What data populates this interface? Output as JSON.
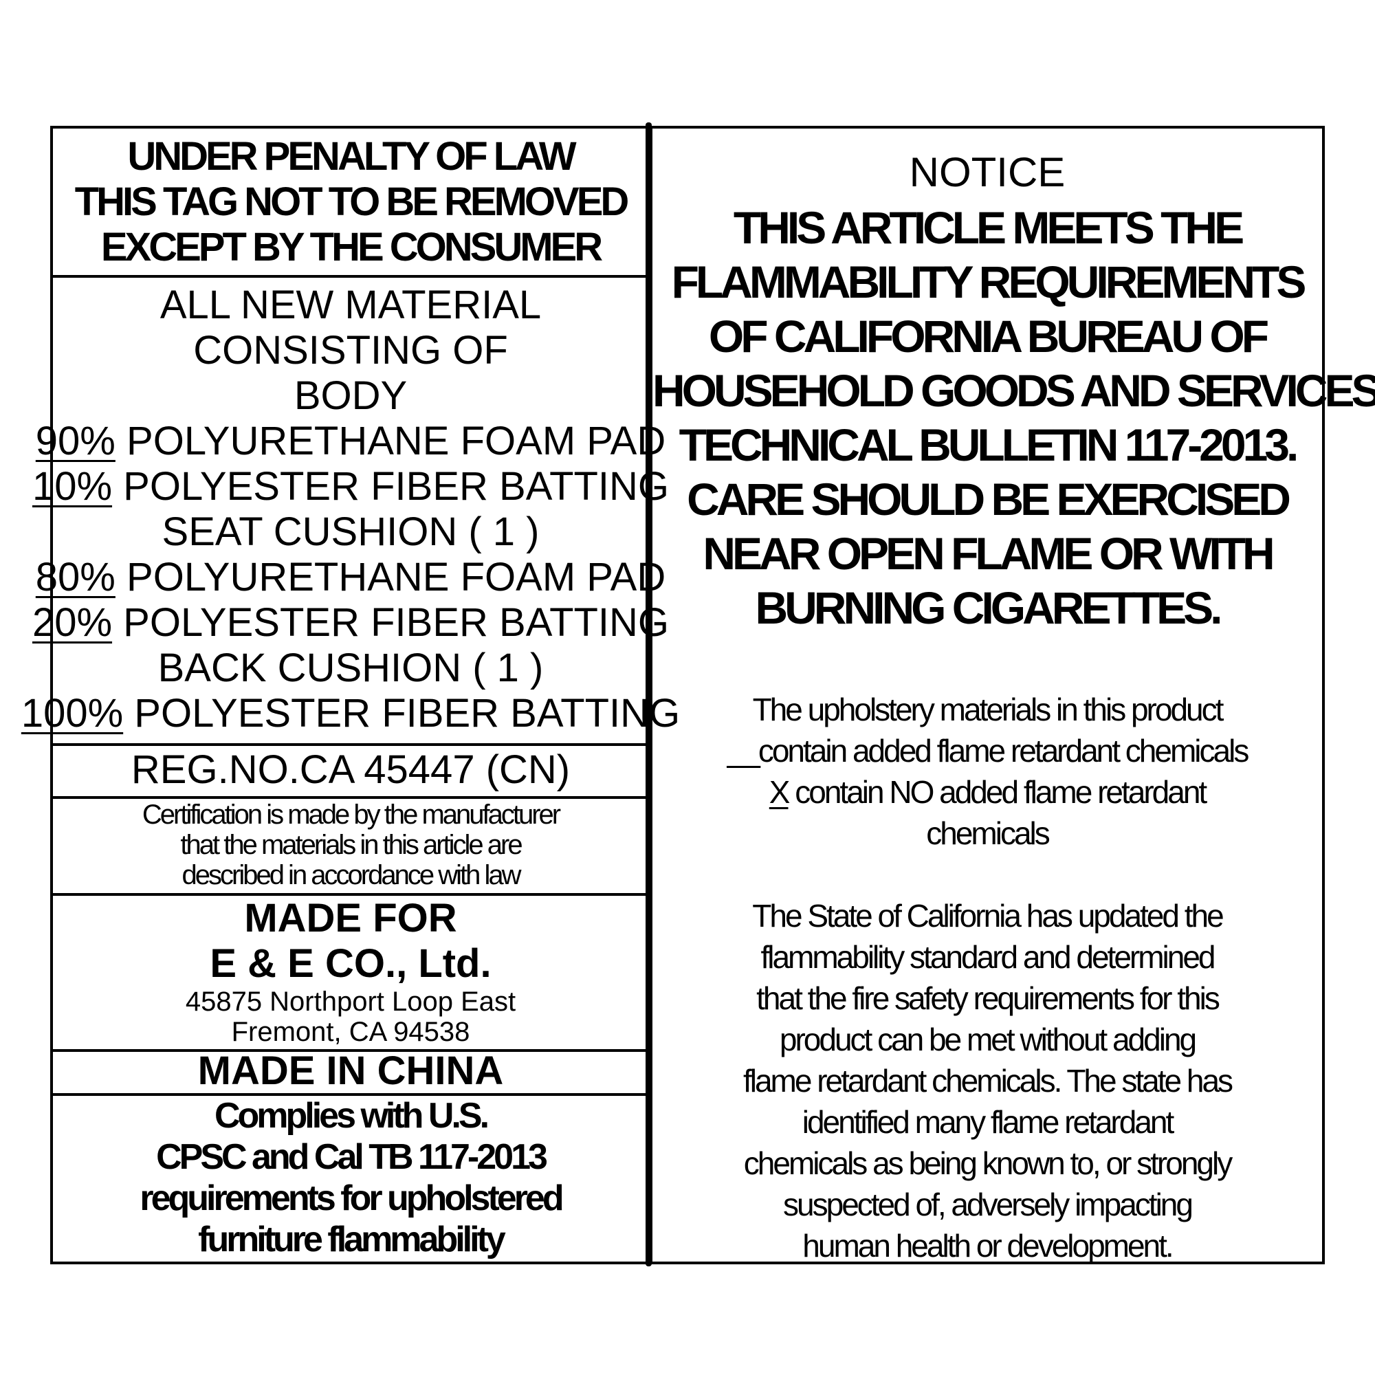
{
  "left": {
    "warning": [
      "UNDER PENALTY OF LAW",
      "THIS TAG NOT TO BE REMOVED",
      "EXCEPT BY THE CONSUMER"
    ],
    "materials_intro": [
      "ALL NEW MATERIAL",
      "CONSISTING OF",
      "BODY"
    ],
    "body": [
      {
        "pct": "90%",
        "text": "POLYURETHANE FOAM PAD"
      },
      {
        "pct": "10%",
        "text": "POLYESTER FIBER BATTING"
      }
    ],
    "seat_label": "SEAT CUSHION ( 1 )",
    "seat": [
      {
        "pct": "80%",
        "text": "POLYURETHANE FOAM PAD"
      },
      {
        "pct": "20%",
        "text": "POLYESTER FIBER BATTING"
      }
    ],
    "back_label": "BACK CUSHION ( 1 )",
    "back": [
      {
        "pct": "100%",
        "text": "POLYESTER FIBER BATTING"
      }
    ],
    "reg_no": "REG.NO.CA 45447 (CN)",
    "certification": [
      "Certification is made by the manufacturer",
      "that the materials in this article are",
      "described in accordance with law"
    ],
    "made_for": "MADE FOR",
    "company": "E & E CO., Ltd.",
    "address": [
      "45875 Northport Loop East",
      "Fremont, CA 94538"
    ],
    "origin": "MADE IN CHINA",
    "compliance": [
      "Complies with U.S.",
      "CPSC and Cal TB 117-2013",
      "requirements for upholstered",
      "furniture flammability"
    ]
  },
  "right": {
    "notice": "NOTICE",
    "statement": [
      "THIS ARTICLE MEETS THE",
      "FLAMMABILITY REQUIREMENTS",
      "OF CALIFORNIA BUREAU OF",
      "HOUSEHOLD GOODS AND SERVICES",
      "TECHNICAL BULLETIN 117-2013.",
      "CARE SHOULD BE EXERCISED",
      "NEAR OPEN FLAME OR WITH",
      "BURNING CIGARETTES."
    ],
    "materials_line": "The upholstery materials in this product",
    "option_contain_mark": "__",
    "option_contain": "contain added flame retardant chemicals",
    "option_no_mark": "X",
    "option_no": "contain NO added flame retardant",
    "option_no_cont": "chemicals",
    "state_text": [
      "The State of California has updated the",
      "flammability  standard and determined",
      "that the fire safety requirements for this",
      "product can be met without adding",
      "flame retardant chemicals. The state has",
      "identified many flame retardant",
      "chemicals as being known to, or strongly",
      "suspected of, adversely impacting",
      "human health or development."
    ]
  }
}
